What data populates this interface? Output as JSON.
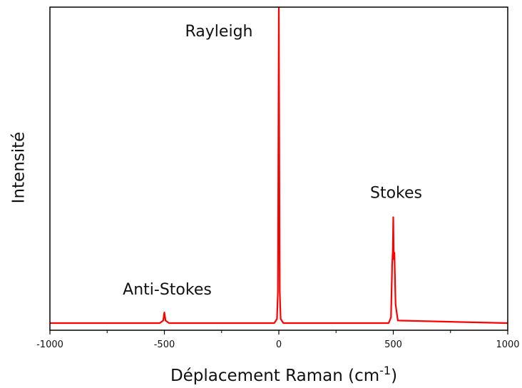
{
  "chart_data": {
    "type": "line",
    "ylabel": "Intensité",
    "xlabel": {
      "text": "Déplacement Raman (cm",
      "superscript": "-1",
      "suffix": ")"
    },
    "xlim": [
      -1000,
      1000
    ],
    "ylim": [
      0,
      100
    ],
    "xticks": [
      -1000,
      -500,
      0,
      500,
      1000
    ],
    "xminorticks": [
      -750,
      -250,
      250,
      750
    ],
    "series": [
      {
        "color": "#ff0000",
        "x": [
          -1000,
          -520,
          -505,
          -500,
          -495,
          -480,
          -20,
          -8,
          -4,
          0,
          4,
          8,
          20,
          480,
          490,
          495,
          498,
          500,
          502,
          505,
          510,
          520,
          1000
        ],
        "values": [
          2.2,
          2.2,
          3,
          5.5,
          3,
          2.2,
          2.2,
          3.5,
          12,
          100,
          12,
          3.5,
          2.2,
          2.2,
          4,
          20,
          25,
          35,
          22,
          24,
          8,
          3,
          2.2
        ]
      }
    ],
    "annotations": [
      {
        "text": "Rayleigh",
        "x": 0,
        "y": 91
      },
      {
        "text": "Stokes",
        "x": 500,
        "y": 41
      },
      {
        "text": "Anti-Stokes",
        "x": -500,
        "y": 11
      }
    ]
  }
}
